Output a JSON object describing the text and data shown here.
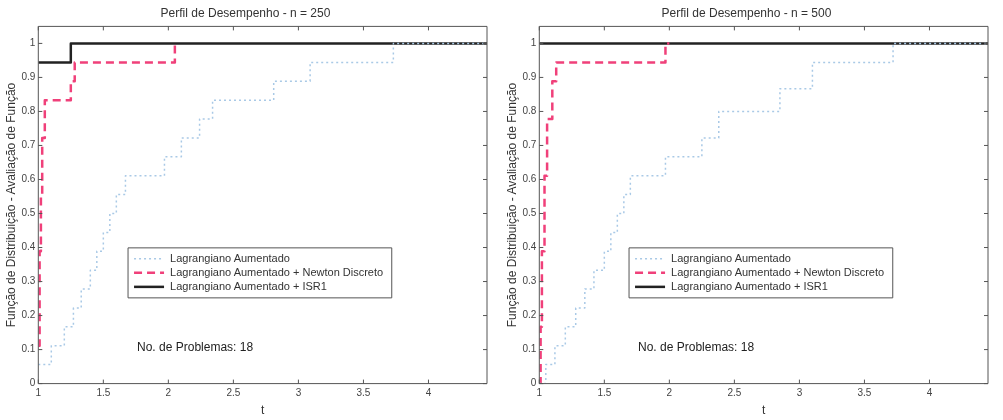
{
  "chart_data": [
    {
      "type": "step",
      "title": "Perfil de Desempenho - n = 250",
      "xlabel": "t",
      "ylabel": "Função de Distribuição - Avaliação de Função",
      "xlim": [
        1,
        4.45
      ],
      "xticks": [
        1,
        1.5,
        2,
        2.5,
        3,
        3.5,
        4
      ],
      "ylim": [
        0,
        1.05
      ],
      "yticks": [
        0,
        0.1,
        0.2,
        0.3,
        0.4,
        0.5,
        0.6,
        0.7,
        0.8,
        0.9,
        1
      ],
      "grid": false,
      "legend": "bottom left",
      "marker": "none",
      "annotations": [
        "No. de Problemas: 18"
      ],
      "series": [
        {
          "name": "Lagrangiano Aumentado",
          "color": "#a9c9e6",
          "line_style": "dotted",
          "x": [
            1,
            1.1,
            1.2,
            1.27,
            1.33,
            1.4,
            1.45,
            1.5,
            1.55,
            1.6,
            1.67,
            1.97,
            2.1,
            2.24,
            2.34,
            2.81,
            3.09,
            3.73,
            4.45
          ],
          "values": [
            0.056,
            0.111,
            0.167,
            0.222,
            0.278,
            0.333,
            0.389,
            0.444,
            0.5,
            0.556,
            0.611,
            0.667,
            0.722,
            0.778,
            0.833,
            0.889,
            0.944,
            1,
            1
          ]
        },
        {
          "name": "Lagrangiano Aumentado + Newton Discreto",
          "color": "#f0407a",
          "line_style": "dashed",
          "x": [
            1,
            1.01,
            1.02,
            1.03,
            1.05,
            1.25,
            1.28,
            2.05,
            2.07
          ],
          "values": [
            0.111,
            0.389,
            0.556,
            0.722,
            0.833,
            0.889,
            0.944,
            1,
            1
          ]
        },
        {
          "name": "Lagrangiano Aumentado + ISR1",
          "color": "#222222",
          "line_style": "solid",
          "x": [
            1,
            1.25,
            4.45
          ],
          "values": [
            0.944,
            1,
            1
          ]
        }
      ]
    },
    {
      "type": "step",
      "title": "Perfil de Desempenho - n = 500",
      "xlabel": "t",
      "ylabel": "Função de Distribuição - Avaliação de Função",
      "xlim": [
        1,
        4.45
      ],
      "xticks": [
        1,
        1.5,
        2,
        2.5,
        3,
        3.5,
        4
      ],
      "ylim": [
        0,
        1.05
      ],
      "yticks": [
        0,
        0.1,
        0.2,
        0.3,
        0.4,
        0.5,
        0.6,
        0.7,
        0.8,
        0.9,
        1
      ],
      "grid": false,
      "legend": "bottom left",
      "marker": "none",
      "annotations": [
        "No. de Problemas: 18"
      ],
      "series": [
        {
          "name": "Lagrangiano Aumentado",
          "color": "#a9c9e6",
          "line_style": "dotted",
          "x": [
            1,
            1.05,
            1.12,
            1.2,
            1.28,
            1.35,
            1.42,
            1.5,
            1.55,
            1.6,
            1.65,
            1.7,
            1.97,
            2.25,
            2.38,
            2.85,
            3.1,
            3.72,
            4.45
          ],
          "values": [
            0,
            0.056,
            0.111,
            0.167,
            0.222,
            0.278,
            0.333,
            0.389,
            0.444,
            0.5,
            0.556,
            0.611,
            0.667,
            0.722,
            0.8,
            0.867,
            0.944,
            1,
            1
          ]
        },
        {
          "name": "Lagrangiano Aumentado + Newton Discreto",
          "color": "#f0407a",
          "line_style": "dashed",
          "x": [
            1,
            1.01,
            1.02,
            1.04,
            1.06,
            1.1,
            1.13,
            1.97,
            2.0
          ],
          "values": [
            0,
            0.167,
            0.389,
            0.611,
            0.778,
            0.889,
            0.944,
            1,
            1
          ]
        },
        {
          "name": "Lagrangiano Aumentado + ISR1",
          "color": "#222222",
          "line_style": "solid",
          "x": [
            1,
            4.45
          ],
          "values": [
            1,
            1
          ]
        }
      ]
    }
  ]
}
